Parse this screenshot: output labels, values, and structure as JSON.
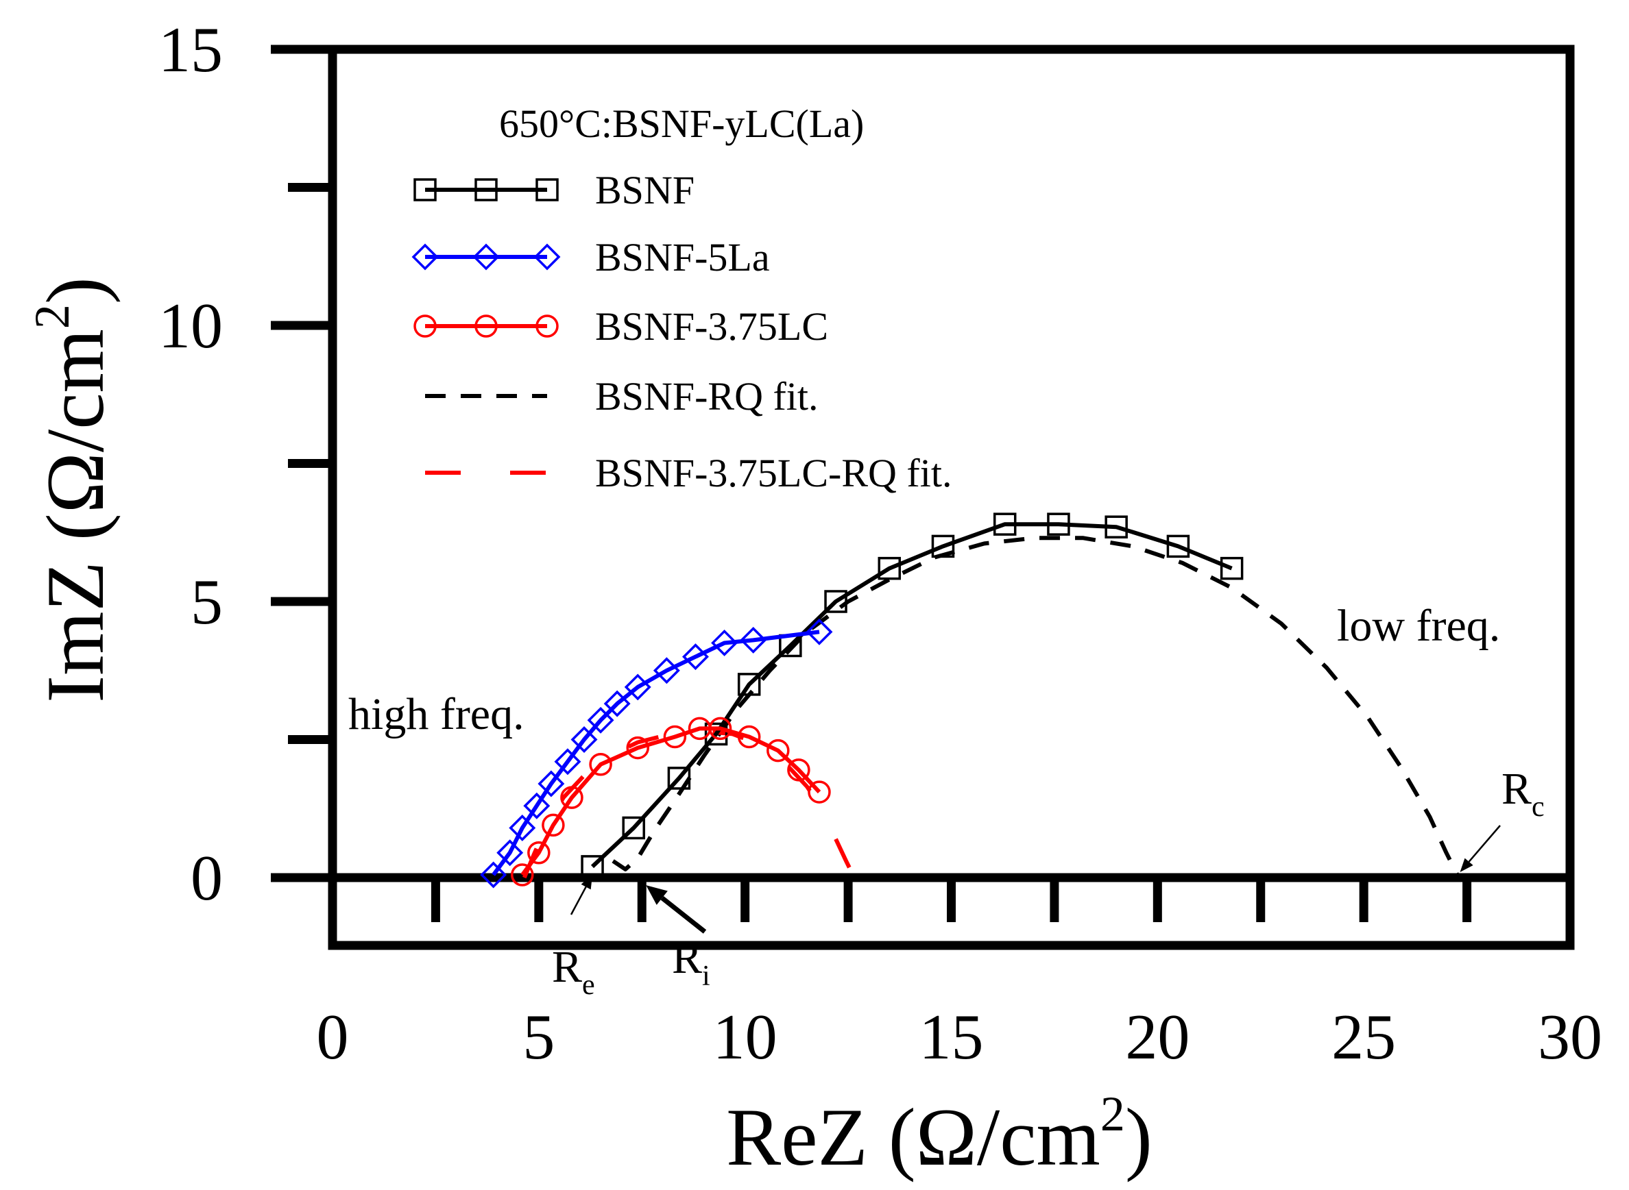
{
  "chart_data": {
    "type": "line",
    "title": "",
    "xlabel": {
      "base": "ReZ (Ω/cm",
      "sup": "2",
      "end": ")"
    },
    "ylabel": {
      "base": "ImZ (Ω/cm",
      "sup": "2",
      "end": ")"
    },
    "xlim": [
      0,
      30
    ],
    "ylim": [
      -1.3,
      15
    ],
    "x_ticks": [
      0,
      5,
      10,
      15,
      20,
      25,
      30
    ],
    "x_tick_labels": [
      "0",
      "5",
      "10",
      "15",
      "20",
      "25",
      "30"
    ],
    "x_minor_ticks": [
      2.5,
      7.5,
      12.5,
      17.5,
      22.5,
      27.5
    ],
    "y_ticks": [
      0,
      5,
      10,
      15
    ],
    "y_tick_labels": [
      "0",
      "5",
      "10",
      "15"
    ],
    "y_minor_ticks": [
      2.5,
      7.5,
      12.5
    ],
    "legend_title": "650°C:BSNF-yLC(La)",
    "legend_position": "top-left",
    "series": [
      {
        "name": "BSNF",
        "color": "#000000",
        "marker": "square",
        "line": "solid",
        "x": [
          6.3,
          7.3,
          8.4,
          9.3,
          10.1,
          11.1,
          12.2,
          13.5,
          14.8,
          16.3,
          17.6,
          19.0,
          20.5,
          21.8
        ],
        "y": [
          0.2,
          0.9,
          1.8,
          2.6,
          3.5,
          4.2,
          5.0,
          5.6,
          6.0,
          6.4,
          6.4,
          6.35,
          6.0,
          5.6
        ]
      },
      {
        "name": "BSNF-5La",
        "color": "#0000ff",
        "marker": "diamond",
        "line": "solid",
        "x": [
          3.9,
          4.3,
          4.6,
          4.95,
          5.3,
          5.7,
          6.1,
          6.5,
          6.9,
          7.4,
          8.1,
          8.8,
          9.5,
          10.2,
          11.8
        ],
        "y": [
          0.05,
          0.45,
          0.9,
          1.3,
          1.7,
          2.1,
          2.5,
          2.85,
          3.15,
          3.45,
          3.75,
          4.0,
          4.25,
          4.3,
          4.45
        ]
      },
      {
        "name": "BSNF-3.75LC",
        "color": "#ff0000",
        "marker": "circle",
        "line": "solid",
        "x": [
          4.6,
          5.0,
          5.35,
          5.8,
          6.5,
          7.4,
          8.3,
          8.9,
          9.4,
          10.1,
          10.8,
          11.3,
          11.8
        ],
        "y": [
          0.05,
          0.45,
          0.95,
          1.45,
          2.05,
          2.35,
          2.55,
          2.7,
          2.7,
          2.55,
          2.3,
          1.95,
          1.55
        ]
      },
      {
        "name": "BSNF-RQ fit.",
        "color": "#000000",
        "marker": "none",
        "line": "dashed",
        "x": [
          6.8,
          7.1,
          7.4,
          7.8,
          8.3,
          9.0,
          9.8,
          10.6,
          11.5,
          12.5,
          13.5,
          14.6,
          15.8,
          17.0,
          18.2,
          19.4,
          20.6,
          21.8,
          23.0,
          24.1,
          25.1,
          25.9,
          26.6,
          27.0,
          27.3
        ],
        "y": [
          0.3,
          0.15,
          0.35,
          0.85,
          1.4,
          2.2,
          3.05,
          3.75,
          4.45,
          5.0,
          5.4,
          5.8,
          6.05,
          6.15,
          6.15,
          6.0,
          5.7,
          5.25,
          4.6,
          3.8,
          2.9,
          2.0,
          1.1,
          0.45,
          0.0
        ]
      },
      {
        "name": "BSNF-3.75LC-RQ fit.",
        "color": "#ff0000",
        "marker": "none",
        "line": "long-dashed",
        "x": [
          4.65,
          4.9,
          5.2,
          5.6,
          6.1,
          6.7,
          7.4,
          8.2,
          9.0,
          9.7,
          10.4,
          11.0,
          11.5,
          11.9,
          12.2,
          12.45,
          12.65
        ],
        "y": [
          0.0,
          0.45,
          0.95,
          1.45,
          1.85,
          2.2,
          2.45,
          2.6,
          2.65,
          2.6,
          2.4,
          2.05,
          1.65,
          1.2,
          0.7,
          0.3,
          0.0
        ]
      }
    ],
    "annotations": {
      "high_freq": "high freq.",
      "low_freq": "low freq.",
      "re_label": {
        "main": "R",
        "sub": "e",
        "x": 6.3,
        "y": 0.1
      },
      "ri_label": {
        "main": "R",
        "sub": "i",
        "x": 7.6,
        "y": -0.2
      },
      "rc_label": {
        "main": "R",
        "sub": "c",
        "x": 27.2,
        "y": 0.05
      }
    }
  }
}
